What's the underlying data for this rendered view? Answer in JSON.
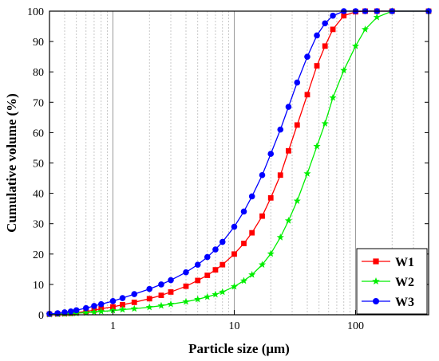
{
  "chart_data": {
    "type": "line",
    "xlabel": "Particle size (μm)",
    "ylabel": "Cumulative volume (%)",
    "xscale": "log",
    "xlim": [
      0.3,
      400
    ],
    "ylim": [
      0,
      100
    ],
    "x_ticks": [
      1,
      10,
      100
    ],
    "x_tick_labels": [
      "1",
      "10",
      "100"
    ],
    "y_ticks": [
      0,
      10,
      20,
      30,
      40,
      50,
      60,
      70,
      80,
      90,
      100
    ],
    "y_tick_labels": [
      "0",
      "10",
      "20",
      "30",
      "40",
      "50",
      "60",
      "70",
      "80",
      "90",
      "100"
    ],
    "grid": "vertical dotted at minor decades, solid at 1, 10, 100",
    "legend_position": "bottom-right",
    "series": [
      {
        "name": "W1",
        "color": "#ff0000",
        "marker": "square",
        "x": [
          0.3,
          0.35,
          0.4,
          0.45,
          0.5,
          0.6,
          0.7,
          0.8,
          1,
          1.2,
          1.5,
          2,
          2.5,
          3,
          4,
          5,
          6,
          7,
          8,
          10,
          12,
          14,
          17,
          20,
          24,
          28,
          33,
          40,
          48,
          56,
          65,
          80,
          100,
          120,
          150,
          200,
          400
        ],
        "y": [
          0.2,
          0.3,
          0.4,
          0.5,
          0.7,
          1.1,
          1.5,
          2,
          2.6,
          3.3,
          4.1,
          5.3,
          6.4,
          7.5,
          9.4,
          11.3,
          13,
          14.8,
          16.5,
          20,
          23.5,
          27,
          32.5,
          38.5,
          46,
          54,
          62.5,
          72.5,
          82,
          88.5,
          94,
          98.5,
          99.8,
          100,
          100,
          100,
          100
        ]
      },
      {
        "name": "W2",
        "color": "#00ee00",
        "marker": "star",
        "x": [
          0.3,
          0.35,
          0.4,
          0.45,
          0.5,
          0.6,
          0.7,
          0.8,
          1,
          1.2,
          1.5,
          2,
          2.5,
          3,
          4,
          5,
          6,
          7,
          8,
          10,
          12,
          14,
          17,
          20,
          24,
          28,
          33,
          40,
          48,
          56,
          65,
          80,
          100,
          120,
          150,
          200,
          400
        ],
        "y": [
          0.1,
          0.2,
          0.3,
          0.4,
          0.5,
          0.7,
          0.9,
          1.1,
          1.4,
          1.7,
          2,
          2.5,
          3,
          3.5,
          4.3,
          5.1,
          5.9,
          6.7,
          7.5,
          9.3,
          11.2,
          13.2,
          16.5,
          20.1,
          25.5,
          31,
          37.5,
          46.5,
          55.5,
          63,
          71.5,
          80.5,
          88.5,
          94,
          98,
          100,
          100
        ]
      },
      {
        "name": "W3",
        "color": "#0000ff",
        "marker": "circle",
        "x": [
          0.3,
          0.35,
          0.4,
          0.45,
          0.5,
          0.6,
          0.7,
          0.8,
          1,
          1.2,
          1.5,
          2,
          2.5,
          3,
          4,
          5,
          6,
          7,
          8,
          10,
          12,
          14,
          17,
          20,
          24,
          28,
          33,
          40,
          48,
          56,
          65,
          80,
          100,
          120,
          150,
          200,
          400
        ],
        "y": [
          0.3,
          0.5,
          0.8,
          1.1,
          1.5,
          2.2,
          2.9,
          3.5,
          4.5,
          5.5,
          6.8,
          8.5,
          10,
          11.4,
          14,
          16.5,
          19,
          21.5,
          24,
          29,
          34,
          39,
          46,
          53,
          61,
          68.5,
          76.5,
          85,
          92,
          96,
          98.5,
          100,
          100,
          100,
          100,
          100,
          100
        ]
      }
    ]
  }
}
